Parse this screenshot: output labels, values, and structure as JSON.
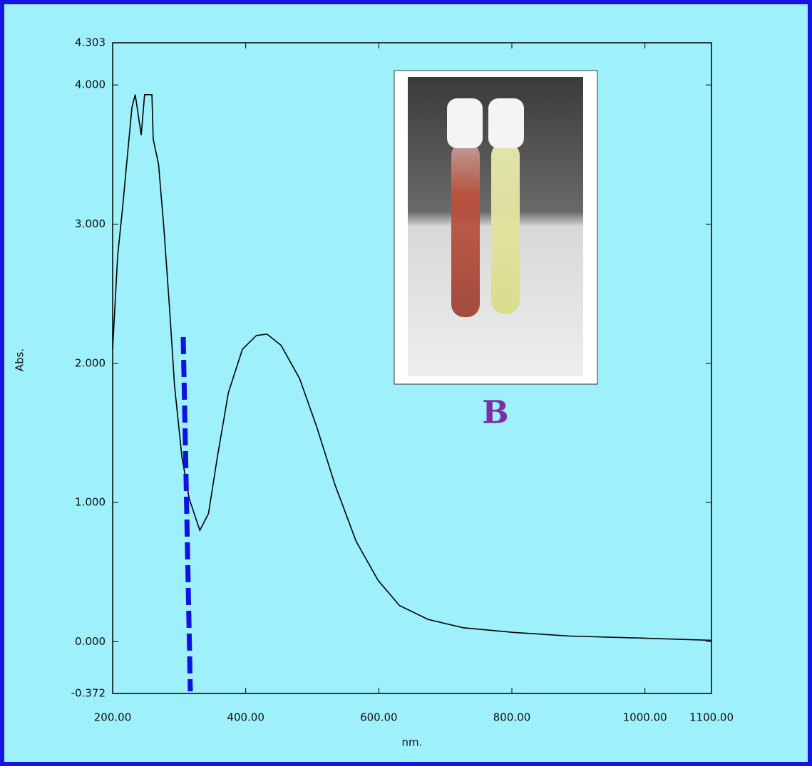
{
  "chart_data": {
    "type": "line",
    "x_label": "nm.",
    "y_label": "Abs.",
    "annotation": "B",
    "x": [
      200,
      207.5,
      215,
      221,
      229,
      234,
      243,
      248,
      259,
      261,
      269,
      277,
      286,
      293,
      304,
      315,
      331,
      344,
      357.5,
      374,
      395,
      416,
      432,
      453,
      481,
      507,
      534,
      566,
      599,
      631,
      674,
      727,
      802,
      888,
      995,
      1100
    ],
    "values": [
      2.1,
      2.77,
      3.12,
      3.43,
      3.84,
      3.93,
      3.64,
      3.93,
      3.93,
      3.61,
      3.43,
      2.97,
      2.36,
      1.84,
      1.33,
      1.03,
      0.8,
      0.92,
      1.33,
      1.79,
      2.1,
      2.2,
      2.21,
      2.13,
      1.89,
      1.54,
      1.13,
      0.72,
      0.44,
      0.26,
      0.16,
      0.1,
      0.067,
      0.04,
      0.026,
      0.01
    ],
    "color": "#000000",
    "xlim": [
      200,
      1100
    ],
    "xticks": [
      {
        "value": 200,
        "label": "200.00"
      },
      {
        "value": 400,
        "label": "400.00"
      },
      {
        "value": 600,
        "label": "600.00"
      },
      {
        "value": 800,
        "label": "800.00"
      },
      {
        "value": 1000,
        "label": "1000.00"
      },
      {
        "value": 1100,
        "label": "1100.00"
      }
    ],
    "ylim": [
      -0.372,
      4.303
    ],
    "yticks": [
      {
        "value": -0.372,
        "label": "-0.372"
      },
      {
        "value": 0,
        "label": "0.000"
      },
      {
        "value": 1,
        "label": "1.000"
      },
      {
        "value": 2,
        "label": "2.000"
      },
      {
        "value": 3,
        "label": "3.000"
      },
      {
        "value": 4,
        "label": "4.000"
      },
      {
        "value": 4.303,
        "label": "4.303"
      }
    ]
  }
}
